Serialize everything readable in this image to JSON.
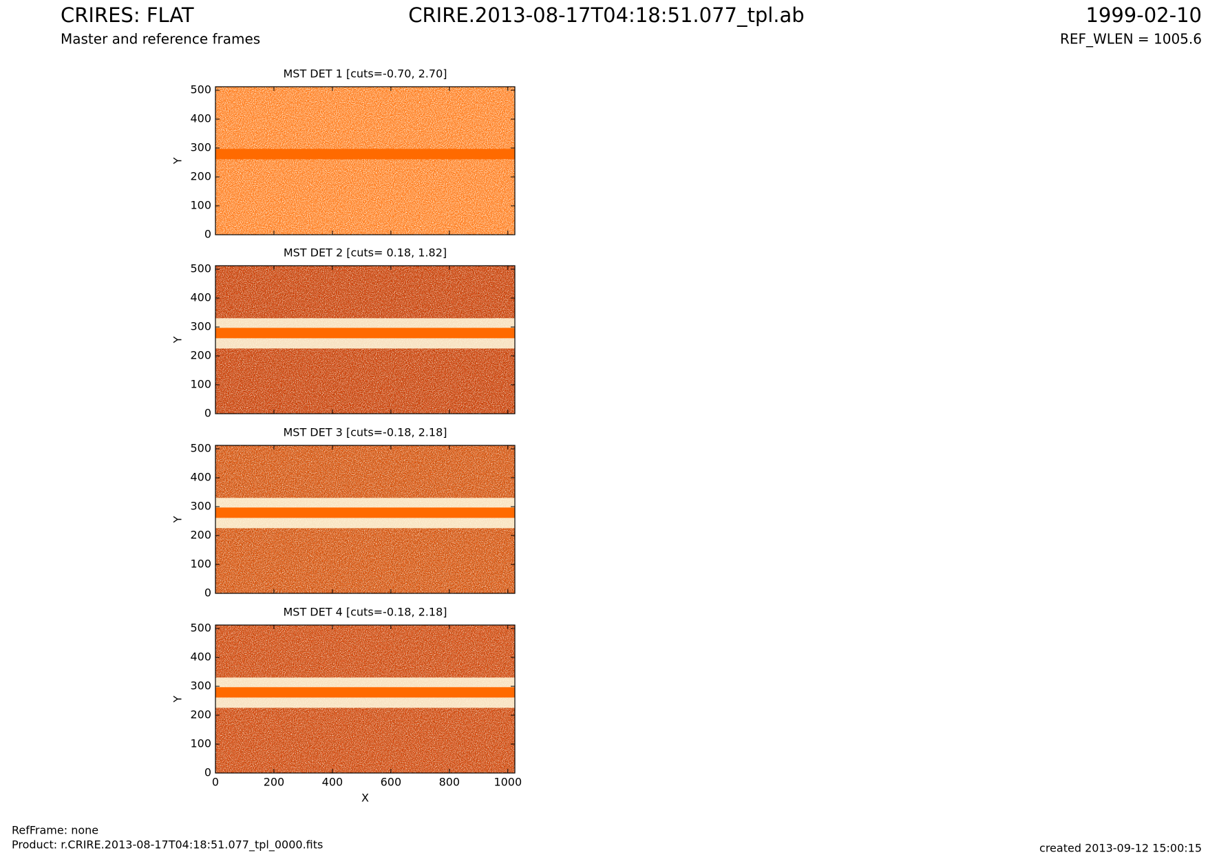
{
  "header": {
    "title": "CRIRES: FLAT",
    "subtitle": "Master and reference frames",
    "filename": "CRIRE.2013-08-17T04:18:51.077_tpl.ab",
    "date": "1999-02-10",
    "ref_wlen": "REF_WLEN = 1005.6"
  },
  "chart_data": [
    {
      "type": "image",
      "title": "MST DET 1 [cuts=-0.70, 2.70]",
      "y_label": "Y",
      "xlim": [
        0,
        1024
      ],
      "ylim": [
        0,
        512
      ],
      "xticks": [
        0,
        200,
        400,
        600,
        800,
        1000
      ],
      "yticks": [
        0,
        100,
        200,
        300,
        400,
        500
      ]
    },
    {
      "type": "image",
      "title": "MST DET 2 [cuts= 0.18, 1.82]",
      "y_label": "Y",
      "xlim": [
        0,
        1024
      ],
      "ylim": [
        0,
        512
      ],
      "xticks": [
        0,
        200,
        400,
        600,
        800,
        1000
      ],
      "yticks": [
        0,
        100,
        200,
        300,
        400,
        500
      ]
    },
    {
      "type": "image",
      "title": "MST DET 3 [cuts=-0.18, 2.18]",
      "y_label": "Y",
      "xlim": [
        0,
        1024
      ],
      "ylim": [
        0,
        512
      ],
      "xticks": [
        0,
        200,
        400,
        600,
        800,
        1000
      ],
      "yticks": [
        0,
        100,
        200,
        300,
        400,
        500
      ]
    },
    {
      "type": "image",
      "title": "MST DET 4 [cuts=-0.18, 2.18]",
      "x_label": "X",
      "y_label": "Y",
      "xlim": [
        0,
        1024
      ],
      "ylim": [
        0,
        512
      ],
      "xticks": [
        0,
        200,
        400,
        600,
        800,
        1000
      ],
      "yticks": [
        0,
        100,
        200,
        300,
        400,
        500
      ]
    }
  ],
  "footer": {
    "ref_frame": "RefFrame: none",
    "product": "Product: r.CRIRE.2013-08-17T04:18:51.077_tpl_0000.fits",
    "created": "created 2013-09-12 15:00:15"
  }
}
